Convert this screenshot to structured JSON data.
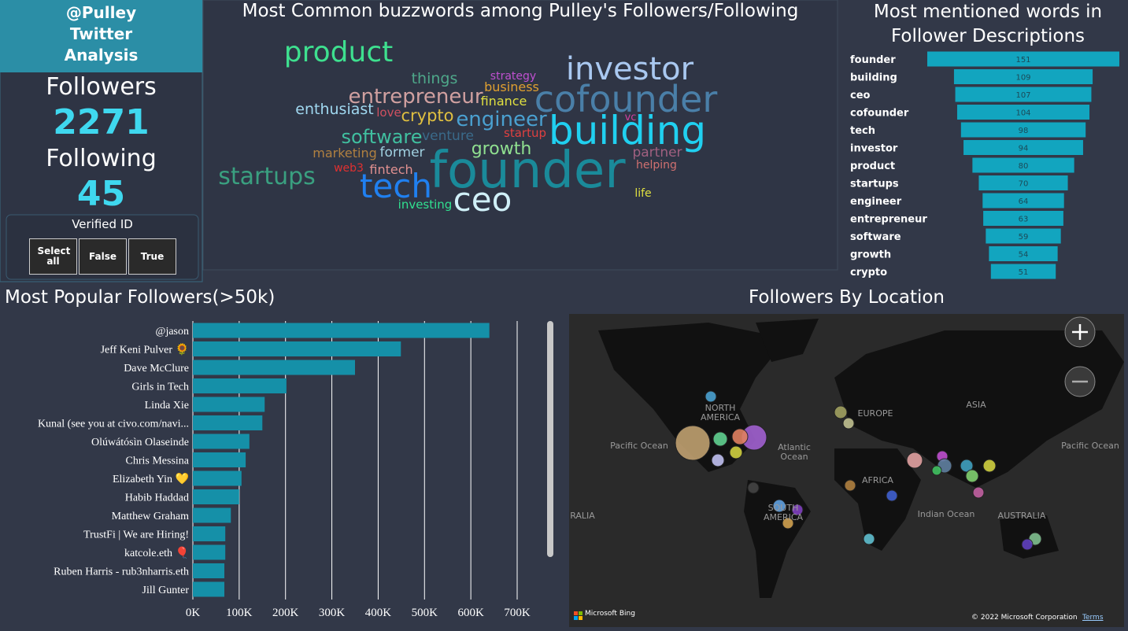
{
  "sidebar": {
    "title": [
      "@Pulley",
      "Twitter",
      "Analysis"
    ],
    "followers_label": "Followers",
    "followers": 2271,
    "following_label": "Following",
    "following": 45,
    "slicer": {
      "title": "Verified ID",
      "options": [
        "Select all",
        "False",
        "True"
      ]
    }
  },
  "wordcloud": {
    "title": "Most Common buzzwords among Pulley's Followers/Following",
    "words": [
      "product",
      "investor",
      "cofounder",
      "things",
      "strategy",
      "business",
      "entrepreneur",
      "finance",
      "enthusiast",
      "love",
      "crypto",
      "engineer",
      "vc",
      "building",
      "software",
      "venture",
      "startup",
      "growth",
      "former",
      "marketing",
      "partner",
      "founder",
      "web3",
      "fintech",
      "helping",
      "startups",
      "tech",
      "ceo",
      "life",
      "investing"
    ]
  },
  "chart_data": [
    {
      "type": "funnel",
      "title": "Most mentioned words in Follower Descriptions",
      "color": "#12a5bf",
      "categories": [
        "founder",
        "building",
        "ceo",
        "cofounder",
        "tech",
        "investor",
        "product",
        "startups",
        "engineer",
        "entrepreneur",
        "software",
        "growth",
        "crypto"
      ],
      "values": [
        151,
        109,
        107,
        104,
        98,
        94,
        80,
        70,
        64,
        63,
        59,
        54,
        51
      ]
    },
    {
      "type": "hbar",
      "title": "Most Popular Followers(>50k)",
      "color": "#1590a8",
      "grid": true,
      "categories": [
        "@jason",
        "Jeff Keni Pulver 🌻",
        "Dave McClure",
        "Girls in Tech",
        "Linda Xie",
        "Kunal (see you at civo.com/navi...",
        "Olúwátósìn Olaseinde",
        "Chris Messina",
        "Elizabeth Yin 💛",
        "Habib Haddad",
        "Matthew Graham",
        "TrustFi | We are Hiring!",
        "katcole.eth 🎈",
        "Ruben Harris - rub3nharris.eth",
        "Jill Gunter"
      ],
      "values": [
        640000,
        449000,
        350000,
        202000,
        155000,
        150000,
        122000,
        114000,
        105000,
        100000,
        82000,
        70000,
        70000,
        68000,
        68000
      ],
      "xlim": [
        0,
        700000
      ],
      "xticks": [
        {
          "value": 0,
          "label": "0K"
        },
        {
          "value": 100000,
          "label": "100K"
        },
        {
          "value": 200000,
          "label": "200K"
        },
        {
          "value": 300000,
          "label": "300K"
        },
        {
          "value": 400000,
          "label": "400K"
        },
        {
          "value": 500000,
          "label": "500K"
        },
        {
          "value": 600000,
          "label": "600K"
        },
        {
          "value": 700000,
          "label": "700K"
        }
      ]
    }
  ],
  "map": {
    "title": "Followers By Location",
    "labels": [
      "NORTH AMERICA",
      "EUROPE",
      "ASIA",
      "Atlantic Ocean",
      "Pacific Ocean",
      "Pacific Ocean",
      "AFRICA",
      "SOUTH AMERICA",
      "Indian Ocean",
      "AUSTRALIA",
      "RALIA"
    ],
    "attribution": "Microsoft Bing",
    "copyright": "© 2022 Microsoft Corporation",
    "terms": "Terms"
  }
}
